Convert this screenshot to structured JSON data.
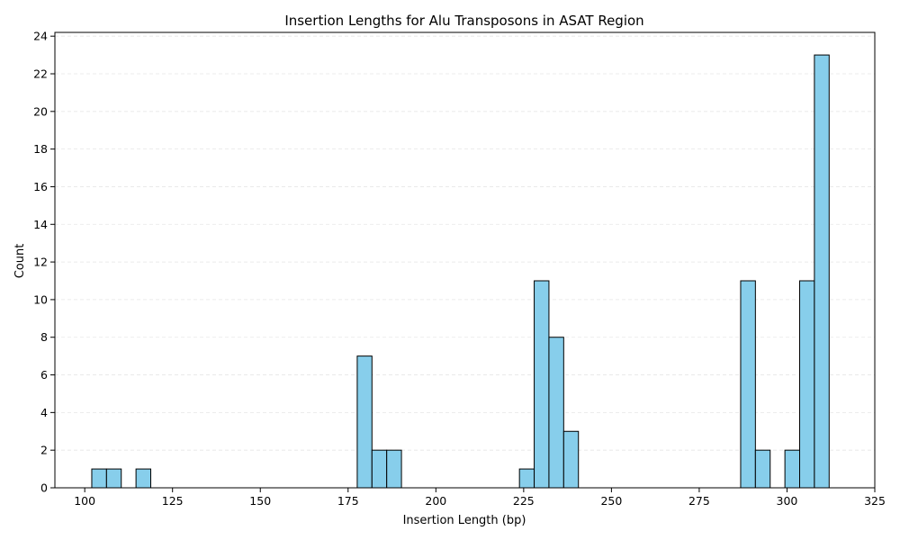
{
  "chart_data": {
    "type": "bar",
    "title": "Insertion Lengths for Alu Transposons in ASAT Region",
    "xlabel": "Insertion Length (bp)",
    "ylabel": "Count",
    "xlim": [
      91.5,
      325
    ],
    "ylim": [
      0,
      24.2
    ],
    "xticks": [
      100,
      125,
      150,
      175,
      200,
      225,
      250,
      275,
      300,
      325
    ],
    "yticks": [
      0,
      2,
      4,
      6,
      8,
      10,
      12,
      14,
      16,
      18,
      20,
      22,
      24
    ],
    "grid": "y-dashed",
    "bin_width": 4.2,
    "bins": [
      {
        "start": 102.0,
        "value": 1
      },
      {
        "start": 106.2,
        "value": 1
      },
      {
        "start": 114.6,
        "value": 1
      },
      {
        "start": 177.6,
        "value": 7
      },
      {
        "start": 181.8,
        "value": 2
      },
      {
        "start": 186.0,
        "value": 2
      },
      {
        "start": 223.8,
        "value": 1
      },
      {
        "start": 228.0,
        "value": 11
      },
      {
        "start": 232.2,
        "value": 8
      },
      {
        "start": 236.4,
        "value": 3
      },
      {
        "start": 286.8,
        "value": 11
      },
      {
        "start": 291.0,
        "value": 2
      },
      {
        "start": 299.4,
        "value": 2
      },
      {
        "start": 303.6,
        "value": 11
      },
      {
        "start": 307.8,
        "value": 23
      }
    ],
    "colors": {
      "bar_fill": "#87ceeb",
      "bar_edge": "#000000",
      "grid": "#e6e6e6"
    }
  }
}
